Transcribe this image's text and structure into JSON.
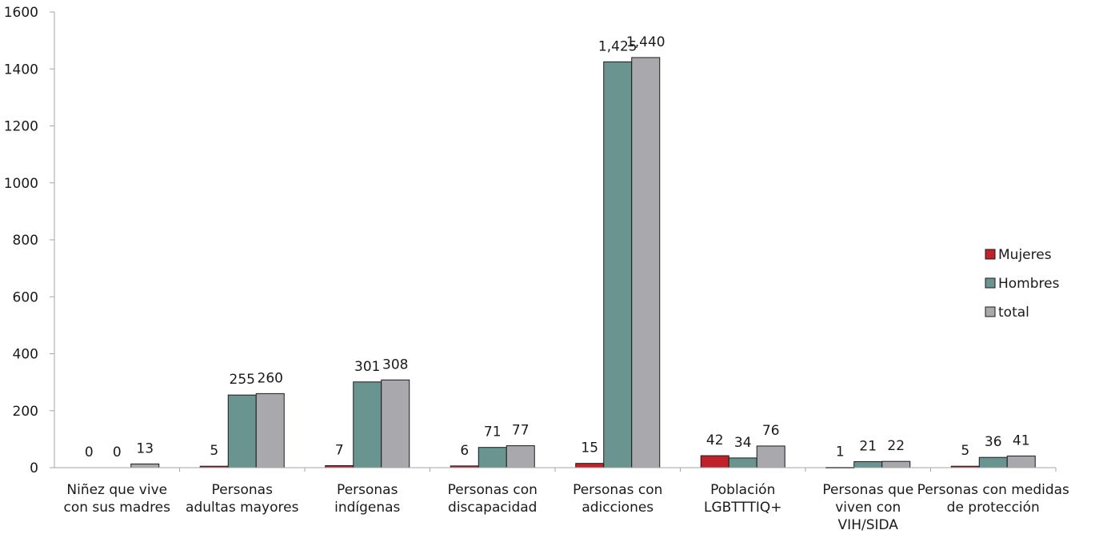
{
  "chart_data": {
    "type": "bar",
    "title": "",
    "xlabel": "",
    "ylabel": "",
    "ylim": [
      0,
      1600
    ],
    "yticks": [
      0,
      200,
      400,
      600,
      800,
      1000,
      1200,
      1400,
      1600
    ],
    "grid": false,
    "legend_position": "right",
    "categories": [
      [
        "Niñez que vive",
        "con sus madres"
      ],
      [
        "Personas",
        "adultas mayores"
      ],
      [
        "Personas",
        "indígenas"
      ],
      [
        "Personas con",
        "discapacidad"
      ],
      [
        "Personas con",
        "adicciones"
      ],
      [
        "Población",
        "LGBTTTIQ+"
      ],
      [
        "Personas que",
        "viven con",
        "VIH/SIDA"
      ],
      [
        "Personas con medidas",
        "de protección"
      ]
    ],
    "series": [
      {
        "name": "Mujeres",
        "color": "#c0222b",
        "values": [
          0,
          5,
          7,
          6,
          15,
          42,
          1,
          5
        ],
        "labels": [
          "0",
          "5",
          "7",
          "6",
          "15",
          "42",
          "1",
          "5"
        ]
      },
      {
        "name": "Hombres",
        "color": "#6a9490",
        "values": [
          0,
          255,
          301,
          71,
          1425,
          34,
          21,
          36
        ],
        "labels": [
          "0",
          "255",
          "301",
          "71",
          "1,425",
          "34",
          "21",
          "36"
        ]
      },
      {
        "name": "total",
        "color": "#a9a9ad",
        "values": [
          13,
          260,
          308,
          77,
          1440,
          76,
          22,
          41
        ],
        "labels": [
          "13",
          "260",
          "308",
          "77",
          "1,440",
          "76",
          "22",
          "41"
        ]
      }
    ]
  }
}
